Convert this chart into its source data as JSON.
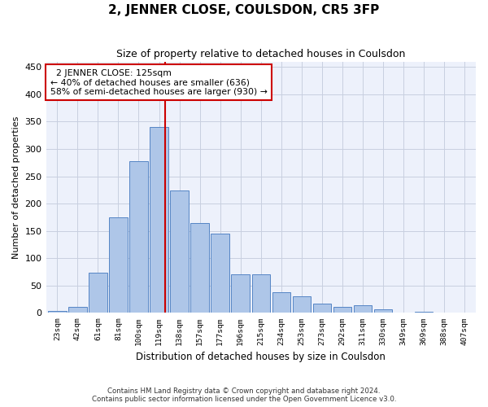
{
  "title": "2, JENNER CLOSE, COULSDON, CR5 3FP",
  "subtitle": "Size of property relative to detached houses in Coulsdon",
  "xlabel": "Distribution of detached houses by size in Coulsdon",
  "ylabel": "Number of detached properties",
  "footer_line1": "Contains HM Land Registry data © Crown copyright and database right 2024.",
  "footer_line2": "Contains public sector information licensed under the Open Government Licence v3.0.",
  "bar_labels": [
    "23sqm",
    "42sqm",
    "61sqm",
    "81sqm",
    "100sqm",
    "119sqm",
    "138sqm",
    "157sqm",
    "177sqm",
    "196sqm",
    "215sqm",
    "234sqm",
    "253sqm",
    "273sqm",
    "292sqm",
    "311sqm",
    "330sqm",
    "349sqm",
    "369sqm",
    "388sqm",
    "407sqm"
  ],
  "bar_values": [
    3,
    11,
    73,
    175,
    278,
    340,
    224,
    165,
    145,
    70,
    70,
    37,
    30,
    17,
    11,
    14,
    6,
    0,
    2,
    0,
    0
  ],
  "bar_color": "#aec6e8",
  "bar_edge_color": "#5585c5",
  "property_label": "2 JENNER CLOSE: 125sqm",
  "smaller_pct": 40,
  "smaller_count": 636,
  "larger_pct": 58,
  "larger_count": 930,
  "vline_color": "#cc0000",
  "annotation_box_edge": "#cc0000",
  "background_color": "#edf1fb",
  "grid_color": "#c8cfe0",
  "ylim": [
    0,
    460
  ],
  "yticks": [
    0,
    50,
    100,
    150,
    200,
    250,
    300,
    350,
    400,
    450
  ]
}
